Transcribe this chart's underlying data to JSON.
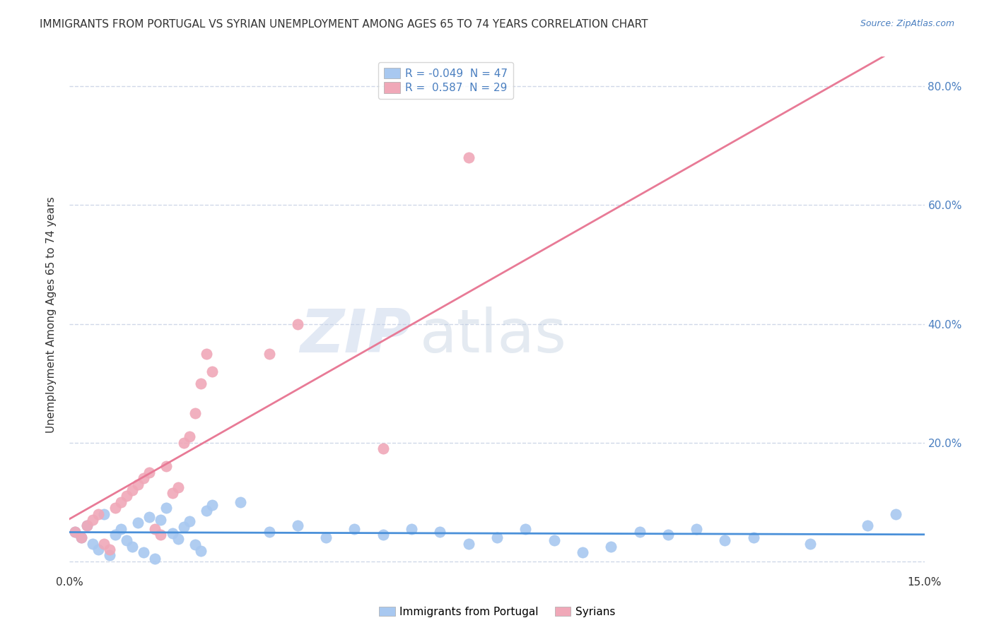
{
  "title": "IMMIGRANTS FROM PORTUGAL VS SYRIAN UNEMPLOYMENT AMONG AGES 65 TO 74 YEARS CORRELATION CHART",
  "source": "Source: ZipAtlas.com",
  "ylabel": "Unemployment Among Ages 65 to 74 years",
  "xlim": [
    0.0,
    0.15
  ],
  "ylim": [
    -0.02,
    0.85
  ],
  "ytick_positions": [
    0.0,
    0.2,
    0.4,
    0.6,
    0.8
  ],
  "right_ytick_positions": [
    0.2,
    0.4,
    0.6,
    0.8
  ],
  "right_ytick_labels": [
    "20.0%",
    "40.0%",
    "60.0%",
    "80.0%"
  ],
  "legend_R1": "-0.049",
  "legend_N1": "47",
  "legend_R2": "0.587",
  "legend_N2": "29",
  "color_portugal": "#a8c8f0",
  "color_syrian": "#f0a8b8",
  "color_line_portugal": "#4a90d9",
  "color_line_syrian": "#e87a96",
  "background_color": "#ffffff",
  "grid_color": "#d0d8e8",
  "portugal_x": [
    0.001,
    0.002,
    0.003,
    0.004,
    0.005,
    0.006,
    0.007,
    0.008,
    0.009,
    0.01,
    0.011,
    0.012,
    0.013,
    0.014,
    0.015,
    0.016,
    0.017,
    0.018,
    0.019,
    0.02,
    0.021,
    0.022,
    0.023,
    0.024,
    0.025,
    0.03,
    0.035,
    0.04,
    0.045,
    0.05,
    0.055,
    0.06,
    0.065,
    0.07,
    0.075,
    0.08,
    0.085,
    0.09,
    0.095,
    0.1,
    0.105,
    0.11,
    0.115,
    0.12,
    0.13,
    0.14,
    0.145
  ],
  "portugal_y": [
    0.05,
    0.04,
    0.06,
    0.03,
    0.02,
    0.08,
    0.01,
    0.045,
    0.055,
    0.035,
    0.025,
    0.065,
    0.015,
    0.075,
    0.005,
    0.07,
    0.09,
    0.048,
    0.038,
    0.058,
    0.068,
    0.028,
    0.018,
    0.085,
    0.095,
    0.1,
    0.05,
    0.06,
    0.04,
    0.055,
    0.045,
    0.055,
    0.05,
    0.03,
    0.04,
    0.055,
    0.035,
    0.015,
    0.025,
    0.05,
    0.045,
    0.055,
    0.035,
    0.04,
    0.03,
    0.06,
    0.08
  ],
  "syrian_x": [
    0.001,
    0.002,
    0.003,
    0.004,
    0.005,
    0.006,
    0.007,
    0.008,
    0.009,
    0.01,
    0.011,
    0.012,
    0.013,
    0.014,
    0.015,
    0.016,
    0.017,
    0.018,
    0.019,
    0.02,
    0.021,
    0.022,
    0.023,
    0.024,
    0.025,
    0.035,
    0.04,
    0.055,
    0.07
  ],
  "syrian_y": [
    0.05,
    0.04,
    0.06,
    0.07,
    0.08,
    0.03,
    0.02,
    0.09,
    0.1,
    0.11,
    0.12,
    0.13,
    0.14,
    0.15,
    0.055,
    0.045,
    0.16,
    0.115,
    0.125,
    0.2,
    0.21,
    0.25,
    0.3,
    0.35,
    0.32,
    0.35,
    0.4,
    0.19,
    0.68
  ]
}
